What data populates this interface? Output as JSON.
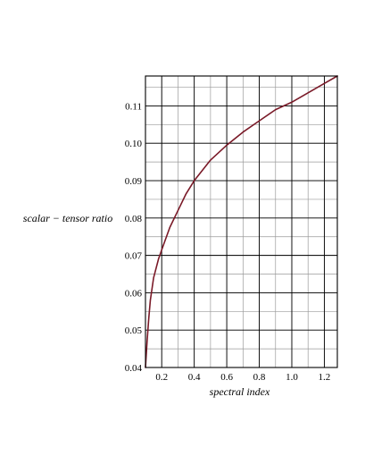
{
  "chart_data": {
    "type": "line",
    "title": "",
    "xlabel": "spectral index",
    "ylabel": "scalar − tensor ratio",
    "xlim": [
      0.1,
      1.28
    ],
    "ylim": [
      0.04,
      0.118
    ],
    "x_ticks": [
      0.2,
      0.4,
      0.6,
      0.8,
      1.0,
      1.2
    ],
    "x_tick_labels": [
      "0.2",
      "0.4",
      "0.6",
      "0.8",
      "1.0",
      "1.2"
    ],
    "y_ticks": [
      0.04,
      0.05,
      0.06,
      0.07,
      0.08,
      0.09,
      0.1,
      0.11
    ],
    "y_tick_labels": [
      "0.04",
      "0.05",
      "0.06",
      "0.07",
      "0.08",
      "0.09",
      "0.10",
      "0.11"
    ],
    "x_minor_step": 0.1,
    "y_minor_step": 0.005,
    "grid": true,
    "series": [
      {
        "color": "#7a1a28",
        "x": [
          0.1,
          0.11,
          0.12,
          0.13,
          0.15,
          0.18,
          0.2,
          0.25,
          0.3,
          0.35,
          0.4,
          0.5,
          0.6,
          0.7,
          0.8,
          0.9,
          1.0,
          1.1,
          1.2,
          1.28
        ],
        "y": [
          0.04,
          0.047,
          0.053,
          0.058,
          0.064,
          0.069,
          0.0715,
          0.0775,
          0.082,
          0.0865,
          0.09,
          0.0955,
          0.0995,
          0.103,
          0.106,
          0.109,
          0.111,
          0.1135,
          0.116,
          0.118
        ]
      }
    ]
  }
}
